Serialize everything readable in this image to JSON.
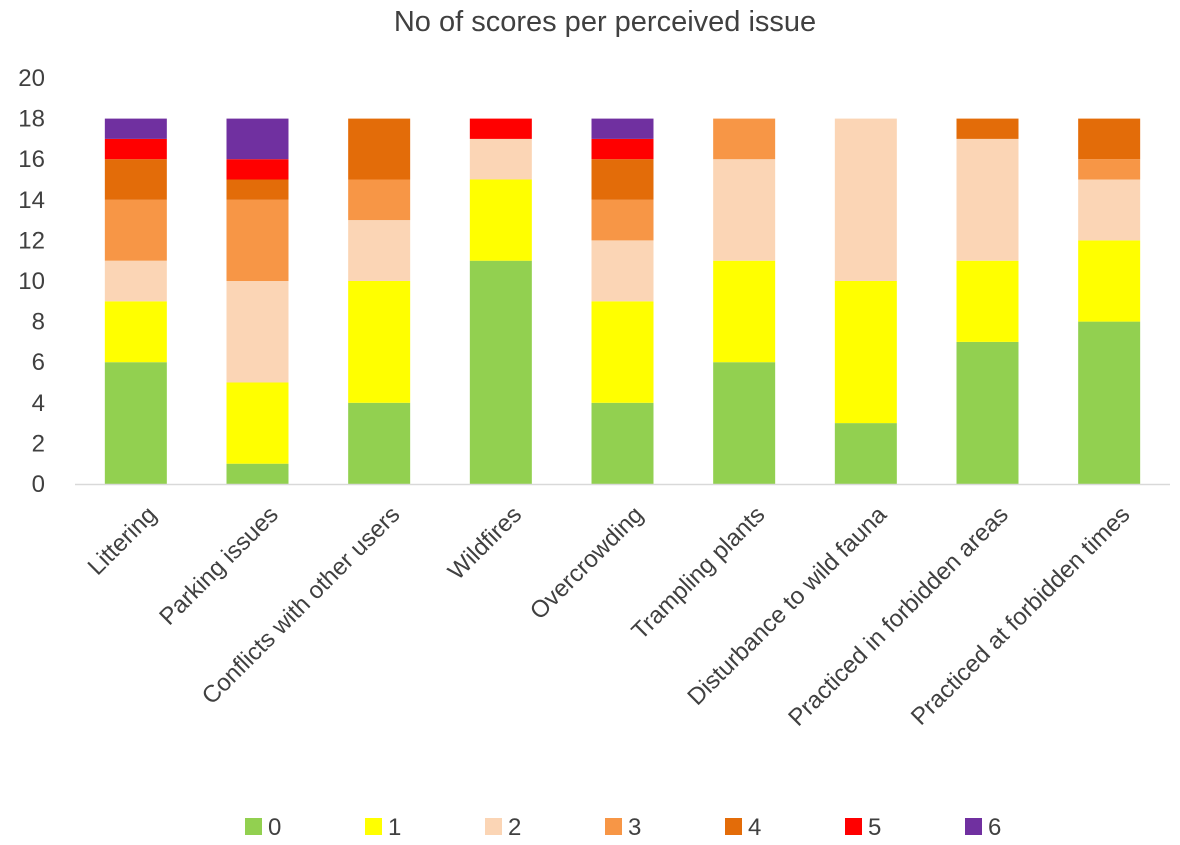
{
  "chart_data": {
    "type": "bar",
    "stacked": true,
    "title": "No of scores per perceived issue",
    "categories": [
      "Littering",
      "Parking issues",
      "Conflicts with other users",
      "Wildfires",
      "Overcrowding",
      "Trampling plants",
      "Disturbance to wild fauna",
      "Practiced in forbidden areas",
      "Practiced at forbidden times"
    ],
    "series": [
      {
        "name": "0",
        "color": "#92D050",
        "values": [
          6,
          1,
          4,
          11,
          4,
          6,
          3,
          7,
          8
        ]
      },
      {
        "name": "1",
        "color": "#FFFF00",
        "values": [
          3,
          4,
          6,
          4,
          5,
          5,
          7,
          4,
          4
        ]
      },
      {
        "name": "2",
        "color": "#FBD5B5",
        "values": [
          2,
          5,
          3,
          2,
          3,
          5,
          8,
          6,
          3
        ]
      },
      {
        "name": "3",
        "color": "#F79646",
        "values": [
          3,
          4,
          2,
          0,
          2,
          2,
          0,
          0,
          1
        ]
      },
      {
        "name": "4",
        "color": "#E36C09",
        "values": [
          2,
          1,
          3,
          0,
          2,
          0,
          0,
          1,
          2
        ]
      },
      {
        "name": "5",
        "color": "#FF0000",
        "values": [
          1,
          1,
          0,
          1,
          1,
          0,
          0,
          0,
          0
        ]
      },
      {
        "name": "6",
        "color": "#7030A0",
        "values": [
          1,
          2,
          0,
          0,
          1,
          0,
          0,
          0,
          0
        ]
      }
    ],
    "ylim": [
      0,
      20
    ],
    "yticks": [
      0,
      2,
      4,
      6,
      8,
      10,
      12,
      14,
      16,
      18,
      20
    ],
    "grid": false,
    "legend": "bottom"
  }
}
